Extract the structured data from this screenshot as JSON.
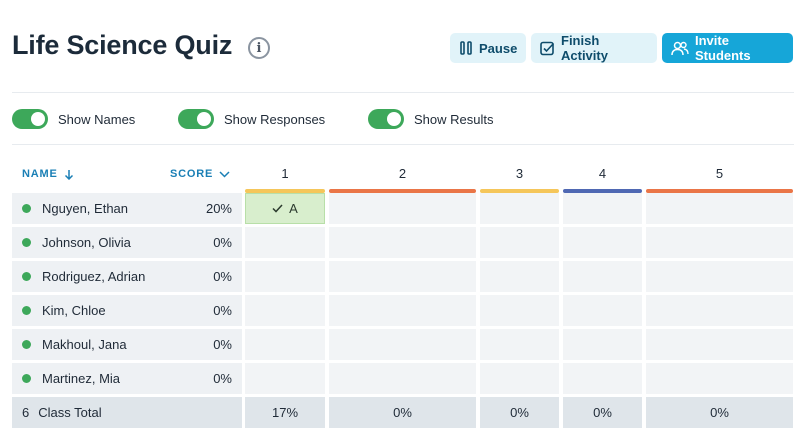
{
  "header": {
    "title": "Life Science Quiz",
    "info_icon": "i",
    "buttons": {
      "pause": "Pause",
      "finish": "Finish Activity",
      "invite": "Invite Students"
    }
  },
  "toggles": [
    {
      "label": "Show Names",
      "on": true
    },
    {
      "label": "Show Responses",
      "on": true
    },
    {
      "label": "Show Results",
      "on": true
    }
  ],
  "table": {
    "name_header": "NAME",
    "score_header": "SCORE",
    "questions": [
      {
        "label": "1",
        "color": "#f5c65a"
      },
      {
        "label": "2",
        "color": "#ea7547"
      },
      {
        "label": "3",
        "color": "#f5c65a"
      },
      {
        "label": "4",
        "color": "#4f68b3"
      },
      {
        "label": "5",
        "color": "#ea7547"
      }
    ],
    "students": [
      {
        "name": "Nguyen, Ethan",
        "score": "20%",
        "q1": "A"
      },
      {
        "name": "Johnson, Olivia",
        "score": "0%"
      },
      {
        "name": "Rodriguez, Adrian",
        "score": "0%"
      },
      {
        "name": "Kim, Chloe",
        "score": "0%"
      },
      {
        "name": "Makhoul, Jana",
        "score": "0%"
      },
      {
        "name": "Martinez, Mia",
        "score": "0%"
      }
    ],
    "total": {
      "count": "6",
      "label": "Class Total",
      "values": [
        "17%",
        "0%",
        "0%",
        "0%",
        "0%"
      ]
    }
  }
}
